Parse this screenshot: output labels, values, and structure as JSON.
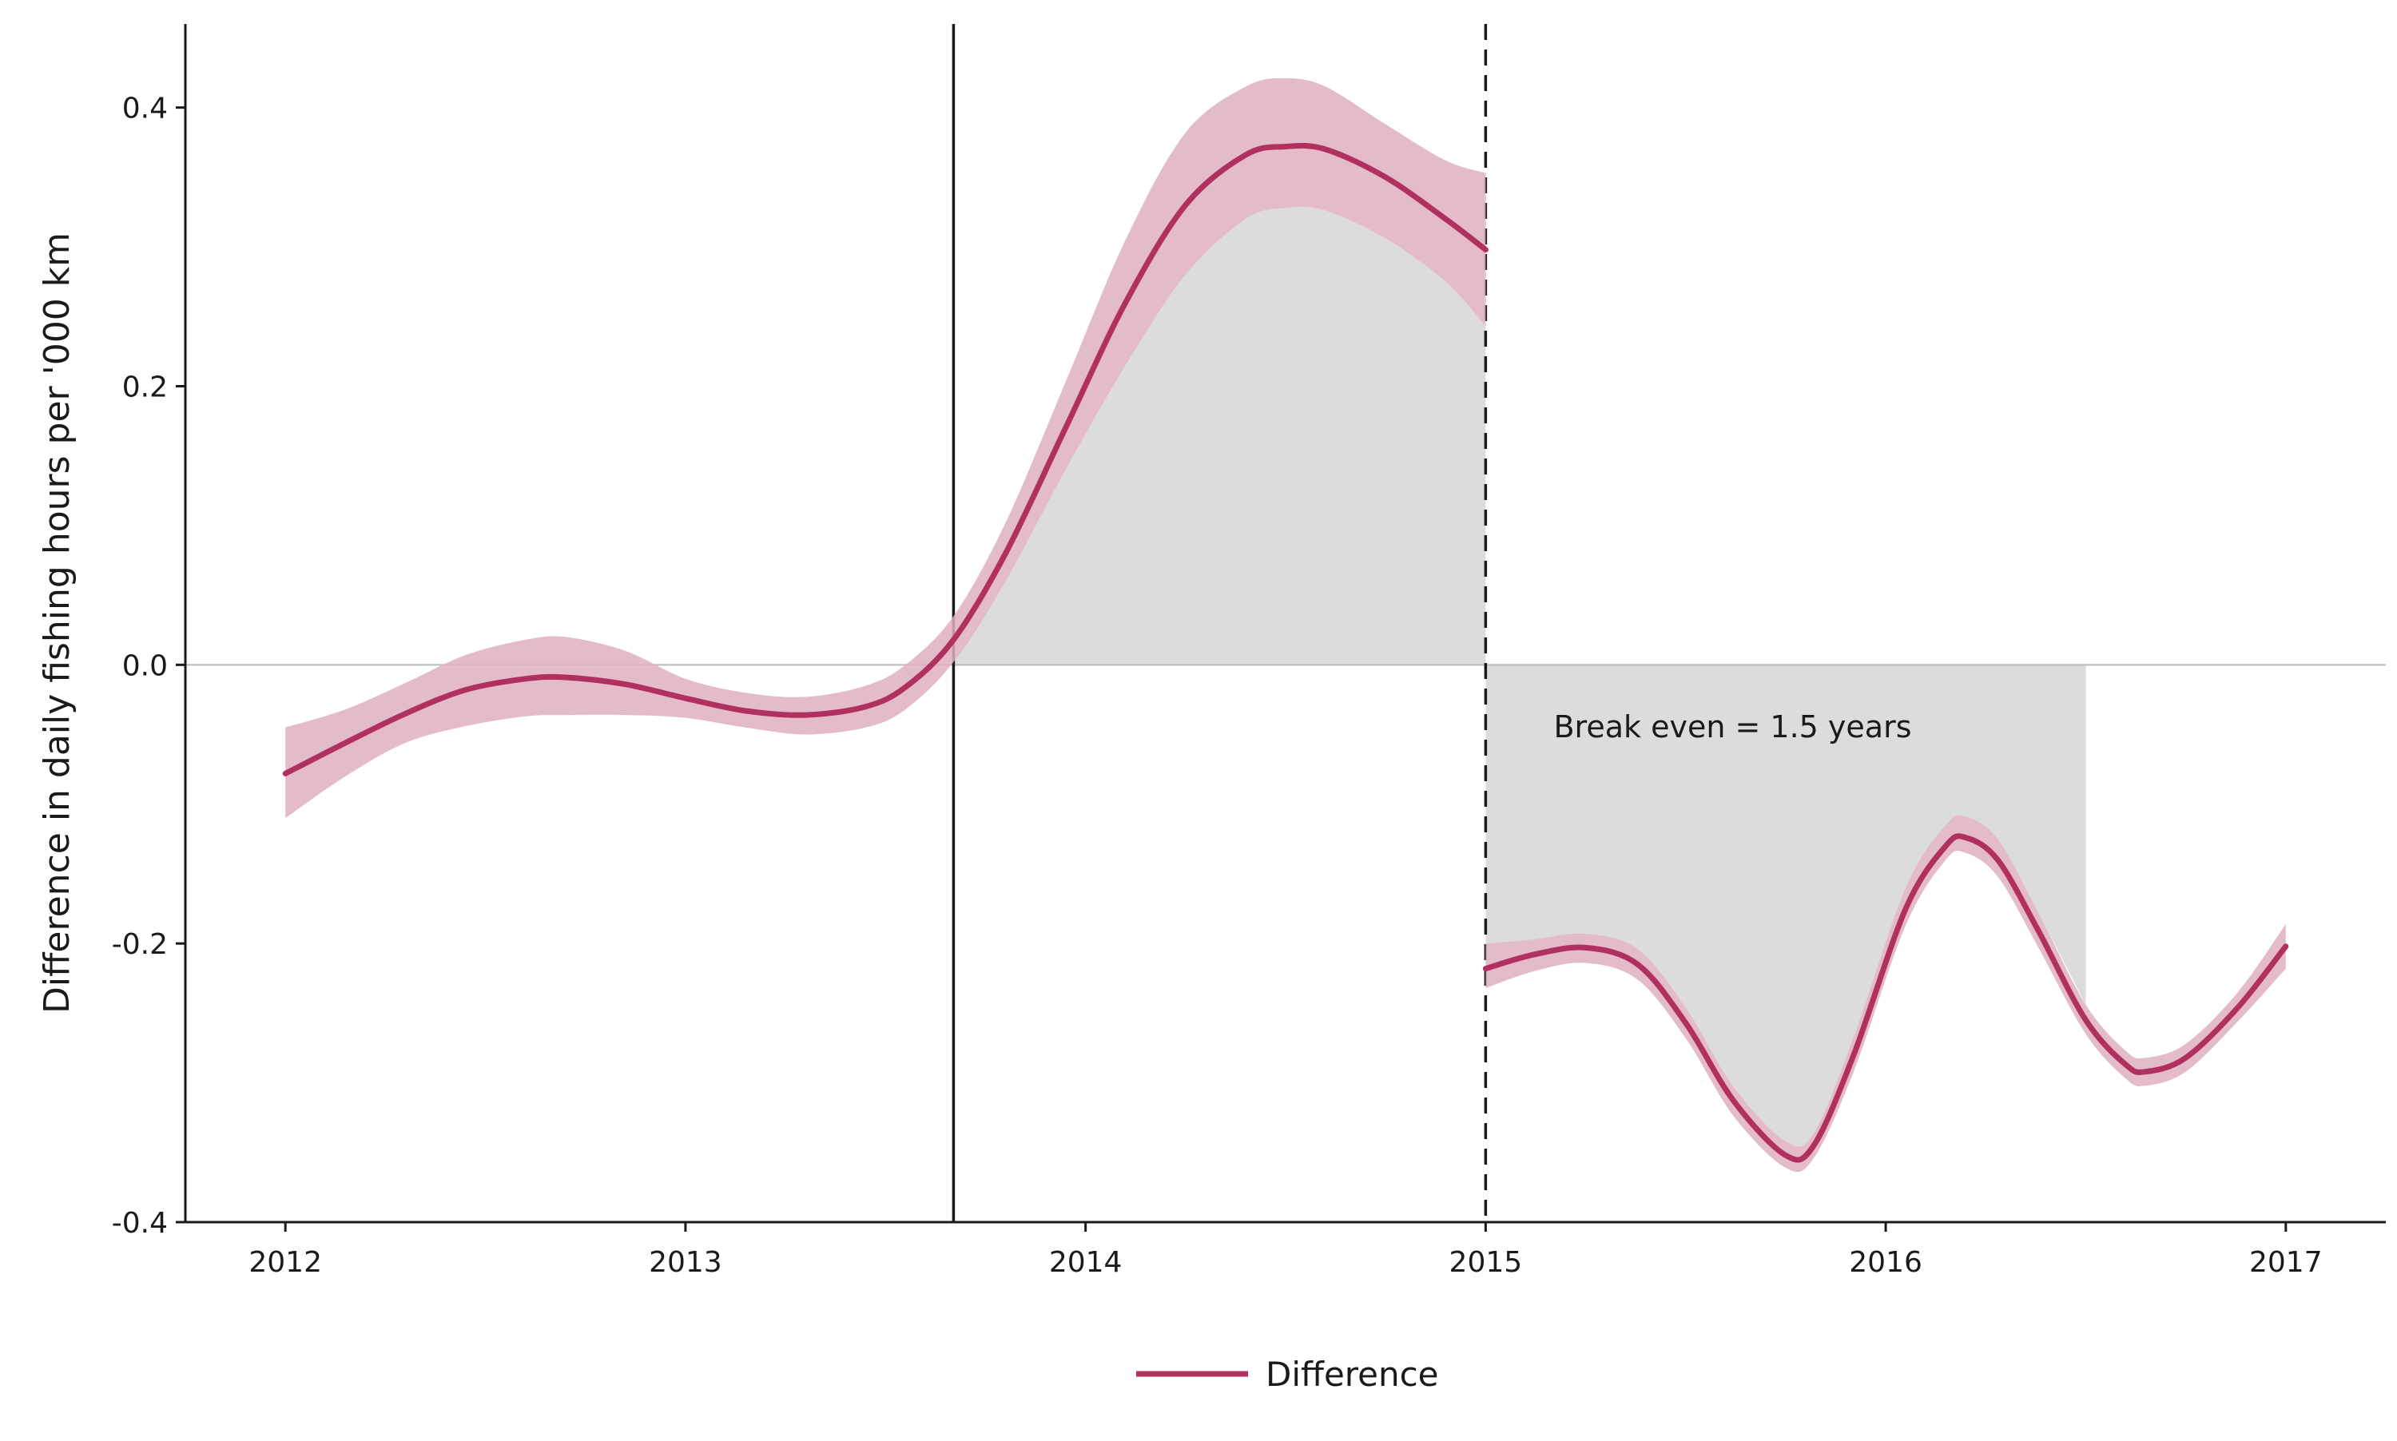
{
  "chart_data": {
    "type": "line",
    "title": "",
    "xlabel": "",
    "ylabel": "Difference in daily fishing hours per '000 km",
    "xlim": [
      2011.75,
      2017.25
    ],
    "ylim": [
      -0.4,
      0.46
    ],
    "x_ticks": [
      2012,
      2013,
      2014,
      2015,
      2016,
      2017
    ],
    "x_tick_labels": [
      "2012",
      "2013",
      "2014",
      "2015",
      "2016",
      "2017"
    ],
    "y_ticks": [
      -0.4,
      -0.2,
      0.0,
      0.2,
      0.4
    ],
    "y_tick_labels": [
      "-0.4",
      "-0.2",
      "0.0",
      "0.2",
      "0.4"
    ],
    "grid": false,
    "legend_placement": "bottom-center",
    "colors": {
      "line": "#b03060",
      "band": "#dfafc0",
      "shade": "#dcdcdc",
      "reference": "#bbbbbb",
      "marker_line": "#1a1a1a"
    },
    "series": [
      {
        "name": "Difference",
        "segments": [
          {
            "x": [
              2012.0,
              2012.15,
              2012.3,
              2012.45,
              2012.6,
              2012.7,
              2012.85,
              2013.0,
              2013.15,
              2013.3,
              2013.45,
              2013.55,
              2013.67,
              2013.8,
              2013.95,
              2014.1,
              2014.25,
              2014.4,
              2014.5,
              2014.6,
              2014.75,
              2014.9,
              2015.0
            ],
            "y": [
              -0.078,
              -0.056,
              -0.035,
              -0.018,
              -0.01,
              -0.009,
              -0.014,
              -0.024,
              -0.033,
              -0.036,
              -0.03,
              -0.016,
              0.018,
              0.08,
              0.17,
              0.26,
              0.33,
              0.366,
              0.372,
              0.37,
              0.35,
              0.32,
              0.298
            ],
            "lower": [
              -0.11,
              -0.08,
              -0.056,
              -0.044,
              -0.037,
              -0.036,
              -0.036,
              -0.038,
              -0.045,
              -0.05,
              -0.045,
              -0.032,
              0.002,
              0.06,
              0.14,
              0.215,
              0.28,
              0.32,
              0.328,
              0.326,
              0.306,
              0.275,
              0.243
            ],
            "upper": [
              -0.045,
              -0.032,
              -0.013,
              0.007,
              0.018,
              0.02,
              0.01,
              -0.01,
              -0.02,
              -0.023,
              -0.015,
              0.0,
              0.035,
              0.102,
              0.203,
              0.305,
              0.382,
              0.415,
              0.421,
              0.415,
              0.388,
              0.362,
              0.353
            ]
          },
          {
            "x": [
              2015.0,
              2015.12,
              2015.25,
              2015.38,
              2015.5,
              2015.62,
              2015.75,
              2015.82,
              2015.92,
              2016.05,
              2016.15,
              2016.2,
              2016.28,
              2016.38,
              2016.5,
              2016.6,
              2016.65,
              2016.75,
              2016.88,
              2017.0
            ],
            "y": [
              -0.218,
              -0.208,
              -0.203,
              -0.215,
              -0.257,
              -0.313,
              -0.352,
              -0.345,
              -0.28,
              -0.175,
              -0.13,
              -0.124,
              -0.14,
              -0.19,
              -0.255,
              -0.287,
              -0.292,
              -0.282,
              -0.246,
              -0.202
            ],
            "lower": [
              -0.232,
              -0.22,
              -0.214,
              -0.226,
              -0.268,
              -0.324,
              -0.361,
              -0.354,
              -0.292,
              -0.187,
              -0.14,
              -0.135,
              -0.152,
              -0.202,
              -0.265,
              -0.297,
              -0.302,
              -0.292,
              -0.256,
              -0.218
            ],
            "upper": [
              -0.2,
              -0.197,
              -0.193,
              -0.204,
              -0.246,
              -0.303,
              -0.342,
              -0.336,
              -0.267,
              -0.16,
              -0.115,
              -0.109,
              -0.125,
              -0.177,
              -0.244,
              -0.277,
              -0.282,
              -0.272,
              -0.235,
              -0.186
            ]
          }
        ]
      }
    ],
    "shaded_regions": [
      {
        "name": "gain-area",
        "x": [
          2013.67,
          2013.8,
          2013.95,
          2014.1,
          2014.25,
          2014.4,
          2014.5,
          2014.6,
          2014.75,
          2014.9,
          2015.0
        ],
        "y_top": [
          0.002,
          0.06,
          0.14,
          0.215,
          0.28,
          0.32,
          0.328,
          0.326,
          0.306,
          0.275,
          0.243
        ],
        "y_bottom": [
          0,
          0,
          0,
          0,
          0,
          0,
          0,
          0,
          0,
          0,
          0
        ]
      },
      {
        "name": "loss-area",
        "x": [
          2015.0,
          2015.12,
          2015.25,
          2015.38,
          2015.5,
          2015.62,
          2015.75,
          2015.82,
          2015.92,
          2016.05,
          2016.15,
          2016.2,
          2016.28,
          2016.38,
          2016.5
        ],
        "y_top": [
          0,
          0,
          0,
          0,
          0,
          0,
          0,
          0,
          0,
          0,
          0,
          0,
          0,
          0,
          0
        ],
        "y_bottom": [
          -0.2,
          -0.197,
          -0.193,
          -0.204,
          -0.246,
          -0.303,
          -0.342,
          -0.336,
          -0.267,
          -0.16,
          -0.115,
          -0.109,
          -0.125,
          -0.177,
          -0.244
        ]
      }
    ],
    "reference_lines": [
      {
        "name": "zero-line",
        "orientation": "horizontal",
        "value": 0.0,
        "style": "solid"
      },
      {
        "name": "start-line",
        "orientation": "vertical",
        "value": 2013.67,
        "style": "solid"
      },
      {
        "name": "break-line",
        "orientation": "vertical",
        "value": 2015.0,
        "style": "dashed"
      }
    ],
    "annotations": [
      {
        "name": "break-even-annotation",
        "text": "Break even = 1.5 years",
        "x": 2015.17,
        "y": -0.052
      }
    ],
    "legend": [
      {
        "label": "Difference"
      }
    ]
  }
}
